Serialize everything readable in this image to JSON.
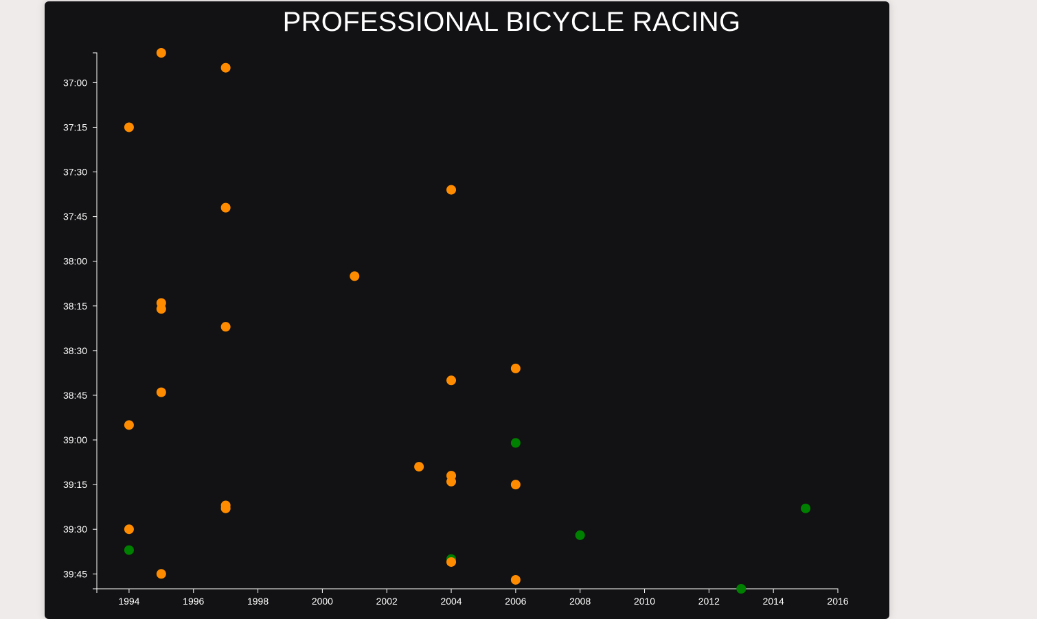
{
  "chart_data": {
    "type": "scatter",
    "title": "PROFESSIONAL BICYCLE RACING",
    "xlabel": "",
    "ylabel": "",
    "xlim": [
      1993,
      2016
    ],
    "ylim": [
      "36:50",
      "39:50"
    ],
    "x_ticks": [
      "1994",
      "1996",
      "1998",
      "2000",
      "2002",
      "2004",
      "2006",
      "2008",
      "2010",
      "2012",
      "2014",
      "2016"
    ],
    "y_ticks": [
      "37:00",
      "37:15",
      "37:30",
      "37:45",
      "38:00",
      "38:15",
      "38:30",
      "38:45",
      "39:00",
      "39:15",
      "39:30",
      "39:45"
    ],
    "y_axis_inverted": true,
    "grid": false,
    "legend": "none",
    "colors": {
      "orange": "#ff8c00",
      "green": "#008000",
      "background": "#121113",
      "page": "#efebea",
      "axis": "#ffffff"
    },
    "points": [
      {
        "x": 1995,
        "y": "36:50",
        "color": "orange"
      },
      {
        "x": 1997,
        "y": "36:55",
        "color": "orange"
      },
      {
        "x": 1994,
        "y": "37:15",
        "color": "orange"
      },
      {
        "x": 2004,
        "y": "37:36",
        "color": "orange"
      },
      {
        "x": 1997,
        "y": "37:42",
        "color": "orange"
      },
      {
        "x": 2001,
        "y": "38:05",
        "color": "orange"
      },
      {
        "x": 1995,
        "y": "38:14",
        "color": "orange"
      },
      {
        "x": 1995,
        "y": "38:16",
        "color": "orange"
      },
      {
        "x": 1997,
        "y": "38:22",
        "color": "orange"
      },
      {
        "x": 2006,
        "y": "38:36",
        "color": "orange"
      },
      {
        "x": 2004,
        "y": "38:40",
        "color": "orange"
      },
      {
        "x": 1995,
        "y": "38:44",
        "color": "orange"
      },
      {
        "x": 1994,
        "y": "38:55",
        "color": "orange"
      },
      {
        "x": 2006,
        "y": "39:01",
        "color": "green"
      },
      {
        "x": 2003,
        "y": "39:09",
        "color": "orange"
      },
      {
        "x": 2004,
        "y": "39:12",
        "color": "orange"
      },
      {
        "x": 2004,
        "y": "39:14",
        "color": "orange"
      },
      {
        "x": 2006,
        "y": "39:15",
        "color": "orange"
      },
      {
        "x": 1997,
        "y": "39:22",
        "color": "orange"
      },
      {
        "x": 1997,
        "y": "39:23",
        "color": "orange"
      },
      {
        "x": 2015,
        "y": "39:23",
        "color": "green"
      },
      {
        "x": 1994,
        "y": "39:30",
        "color": "orange"
      },
      {
        "x": 2008,
        "y": "39:32",
        "color": "green"
      },
      {
        "x": 1994,
        "y": "39:37",
        "color": "green"
      },
      {
        "x": 2004,
        "y": "39:40",
        "color": "green"
      },
      {
        "x": 2004,
        "y": "39:41",
        "color": "orange"
      },
      {
        "x": 1995,
        "y": "39:45",
        "color": "orange"
      },
      {
        "x": 2006,
        "y": "39:47",
        "color": "orange"
      },
      {
        "x": 2013,
        "y": "39:50",
        "color": "green"
      }
    ]
  }
}
